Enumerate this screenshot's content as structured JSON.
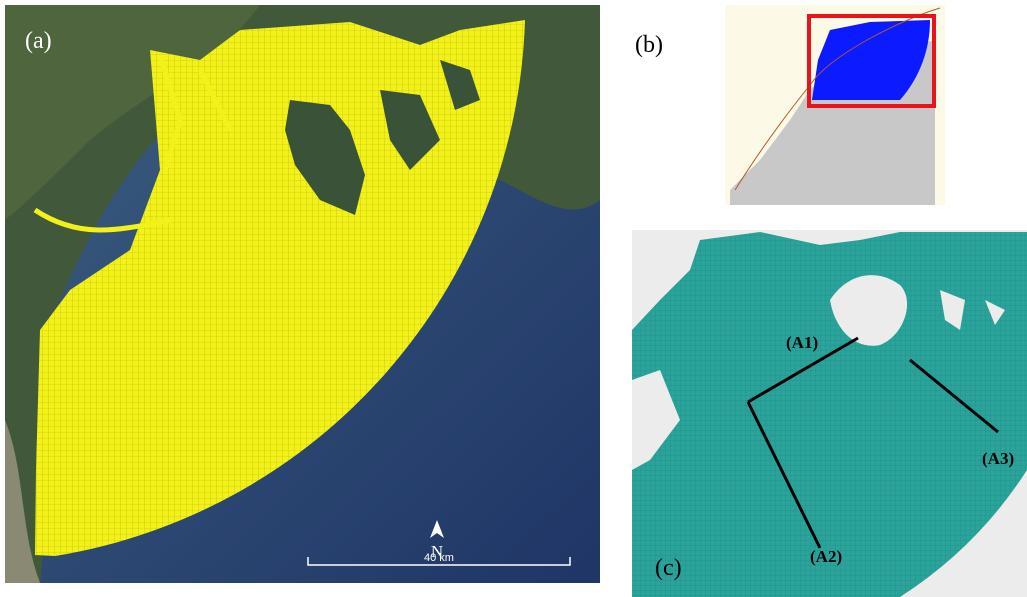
{
  "panel_a": {
    "label": "(a)",
    "north": "N",
    "scale_bar": "40 km"
  },
  "panel_b": {
    "label": "(b)"
  },
  "panel_c": {
    "label": "(c)",
    "sections": [
      "(A1)",
      "(A2)",
      "(A3)"
    ]
  }
}
